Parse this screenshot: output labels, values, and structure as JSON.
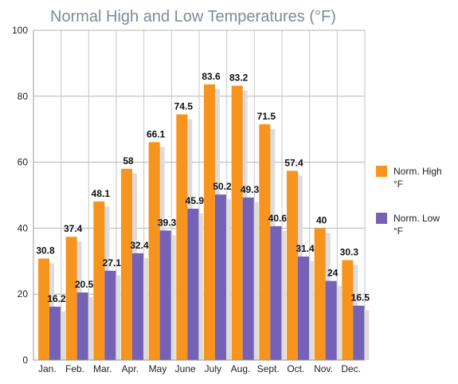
{
  "chart_data": {
    "type": "bar",
    "title": "Normal High and Low Temperatures (°F)",
    "xlabel": "",
    "ylabel": "",
    "ylim": [
      0,
      100
    ],
    "yticks": [
      0,
      20,
      40,
      60,
      80,
      100
    ],
    "grid": true,
    "legend_position": "right",
    "categories": [
      "Jan.",
      "Feb.",
      "Mar.",
      "Apr.",
      "May",
      "June",
      "July",
      "Aug.",
      "Sept.",
      "Oct.",
      "Nov.",
      "Dec."
    ],
    "series": [
      {
        "name": "Norm. High °F",
        "legend_lines": [
          "Norm. High",
          "°F"
        ],
        "color": "#f7941d",
        "values": [
          30.8,
          37.4,
          48.1,
          58,
          66.1,
          74.5,
          83.6,
          83.2,
          71.5,
          57.4,
          40,
          30.3
        ]
      },
      {
        "name": "Norm. Low °F",
        "legend_lines": [
          "Norm. Low",
          "°F"
        ],
        "color": "#7561b5",
        "values": [
          16.2,
          20.5,
          27.1,
          32.4,
          39.3,
          45.9,
          50.2,
          49.3,
          40.6,
          31.4,
          24,
          16.5
        ]
      }
    ]
  }
}
